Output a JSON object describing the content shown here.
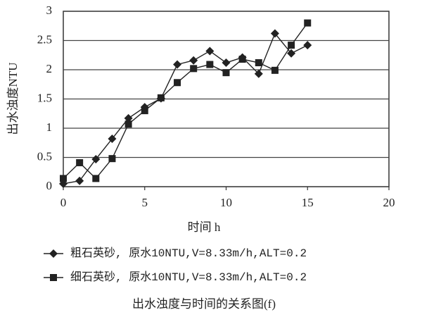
{
  "chart_data": {
    "type": "line",
    "caption": "出水浊度与时间的关系图(f)",
    "x_label": "时间 h",
    "y_label": "出水浊度NTU",
    "x": [
      0,
      1,
      2,
      3,
      4,
      5,
      6,
      7,
      8,
      9,
      10,
      11,
      12,
      13,
      14,
      15
    ],
    "series": [
      {
        "name": "粗石英砂, 原水10NTU,V=8.33m/h,ALT=0.2",
        "color": "#222222",
        "marker": "diamond",
        "values": [
          0.05,
          0.1,
          0.47,
          0.82,
          1.17,
          1.36,
          1.51,
          2.09,
          2.16,
          2.32,
          2.12,
          2.21,
          1.93,
          2.62,
          2.28,
          2.42
        ]
      },
      {
        "name": "细石英砂, 原水10NTU,V=8.33m/h,ALT=0.2",
        "color": "#222222",
        "marker": "square",
        "values": [
          0.14,
          0.41,
          0.14,
          0.48,
          1.07,
          1.3,
          1.52,
          1.78,
          2.02,
          2.09,
          1.95,
          2.18,
          2.12,
          1.99,
          2.42,
          2.8
        ]
      }
    ],
    "xlim": [
      0,
      20
    ],
    "xticks": [
      0,
      5,
      10,
      15,
      20
    ],
    "ylim": [
      0,
      3
    ],
    "yticks": [
      0,
      0.5,
      1,
      1.5,
      2,
      2.5,
      3
    ],
    "grid": true,
    "legend": "bottom"
  }
}
